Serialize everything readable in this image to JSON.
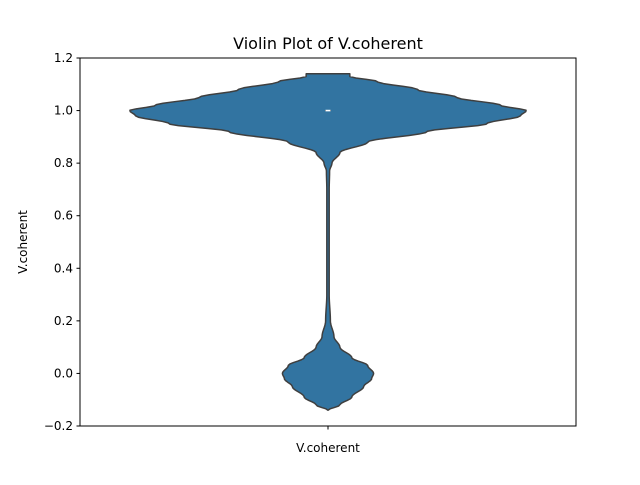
{
  "chart_data": {
    "type": "violin",
    "title": "Violin Plot of V.coherent",
    "xlabel": "",
    "ylabel": "V.coherent",
    "categories": [
      "V.coherent"
    ],
    "ylim": [
      -0.2,
      1.2
    ],
    "yticks": [
      -0.2,
      0.0,
      0.2,
      0.4,
      0.6,
      0.8,
      1.0,
      1.2
    ],
    "ytick_labels": [
      "−0.2",
      "0.0",
      "0.2",
      "0.4",
      "0.6",
      "0.8",
      "1.0",
      "1.2"
    ],
    "grid": false,
    "legend": "none",
    "series": [
      {
        "category": "V.coherent",
        "color": "#3274a1",
        "edge_color": "#3f3f3f",
        "median": 1.0,
        "q1": 1.0,
        "q3": 1.0,
        "density": [
          [
            -0.14,
            0.0
          ],
          [
            -0.12,
            0.06
          ],
          [
            -0.09,
            0.12
          ],
          [
            -0.05,
            0.18
          ],
          [
            -0.02,
            0.22
          ],
          [
            0.0,
            0.23
          ],
          [
            0.03,
            0.2
          ],
          [
            0.06,
            0.12
          ],
          [
            0.1,
            0.06
          ],
          [
            0.14,
            0.03
          ],
          [
            0.2,
            0.012
          ],
          [
            0.3,
            0.006
          ],
          [
            0.5,
            0.006
          ],
          [
            0.7,
            0.006
          ],
          [
            0.77,
            0.008
          ],
          [
            0.8,
            0.02
          ],
          [
            0.84,
            0.06
          ],
          [
            0.88,
            0.2
          ],
          [
            0.92,
            0.5
          ],
          [
            0.95,
            0.8
          ],
          [
            0.98,
            0.97
          ],
          [
            1.0,
            1.0
          ],
          [
            1.02,
            0.87
          ],
          [
            1.05,
            0.65
          ],
          [
            1.08,
            0.45
          ],
          [
            1.11,
            0.25
          ],
          [
            1.13,
            0.11
          ],
          [
            1.14,
            0.11
          ]
        ]
      }
    ]
  }
}
